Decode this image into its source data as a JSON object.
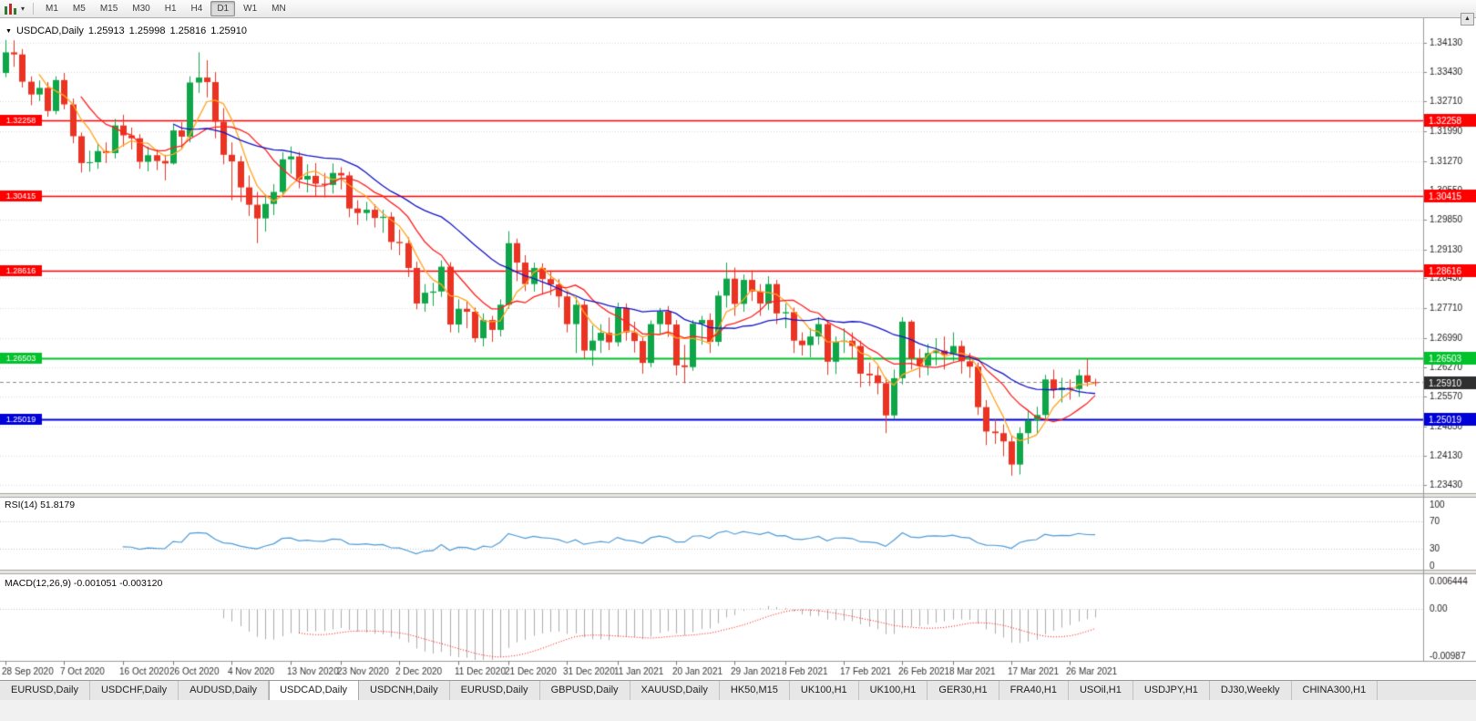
{
  "toolbar": {
    "dropdown_glyph": "▾",
    "scroll_glyph": "▲",
    "timeframes": [
      {
        "label": "M1",
        "active": false
      },
      {
        "label": "M5",
        "active": false
      },
      {
        "label": "M15",
        "active": false
      },
      {
        "label": "M30",
        "active": false
      },
      {
        "label": "H1",
        "active": false
      },
      {
        "label": "H4",
        "active": false
      },
      {
        "label": "D1",
        "active": true
      },
      {
        "label": "W1",
        "active": false
      },
      {
        "label": "MN",
        "active": false
      }
    ]
  },
  "chart_header": {
    "menu_glyph": "▼",
    "symbol": "USDCAD,Daily",
    "open": "1.25913",
    "high": "1.25998",
    "low": "1.25816",
    "close": "1.25910"
  },
  "chart_data": {
    "type": "candlestick",
    "symbol": "USDCAD",
    "timeframe": "Daily",
    "price_range": {
      "top": 1.3455,
      "bottom": 1.2325
    },
    "up_color": "#0FA64A",
    "down_color": "#EA3323",
    "candles": [
      [
        1.334,
        1.342,
        1.333,
        1.339
      ],
      [
        1.339,
        1.3419,
        1.3355,
        1.3385
      ],
      [
        1.3385,
        1.3398,
        1.3305,
        1.3319
      ],
      [
        1.3319,
        1.3332,
        1.3262,
        1.3288
      ],
      [
        1.3288,
        1.3322,
        1.3272,
        1.3304
      ],
      [
        1.3304,
        1.3318,
        1.3234,
        1.3248
      ],
      [
        1.3248,
        1.3332,
        1.324,
        1.3323
      ],
      [
        1.3323,
        1.334,
        1.3252,
        1.3264
      ],
      [
        1.3264,
        1.3278,
        1.317,
        1.3187
      ],
      [
        1.3187,
        1.3196,
        1.3099,
        1.3122
      ],
      [
        1.3122,
        1.3152,
        1.3101,
        1.3124
      ],
      [
        1.3124,
        1.3169,
        1.3108,
        1.3151
      ],
      [
        1.3151,
        1.3172,
        1.3122,
        1.3146
      ],
      [
        1.3146,
        1.3229,
        1.3133,
        1.3213
      ],
      [
        1.3213,
        1.3239,
        1.3162,
        1.3189
      ],
      [
        1.3189,
        1.3208,
        1.3155,
        1.3182
      ],
      [
        1.3182,
        1.3192,
        1.3108,
        1.3125
      ],
      [
        1.3125,
        1.3162,
        1.3102,
        1.3141
      ],
      [
        1.3141,
        1.3155,
        1.3105,
        1.3127
      ],
      [
        1.3127,
        1.3142,
        1.308,
        1.3121
      ],
      [
        1.3121,
        1.3215,
        1.3118,
        1.3201
      ],
      [
        1.3201,
        1.3221,
        1.3157,
        1.3186
      ],
      [
        1.3186,
        1.3332,
        1.3172,
        1.3317
      ],
      [
        1.3317,
        1.339,
        1.3292,
        1.3329
      ],
      [
        1.3329,
        1.3371,
        1.3281,
        1.3318
      ],
      [
        1.3318,
        1.3342,
        1.3182,
        1.3222
      ],
      [
        1.3222,
        1.3255,
        1.3119,
        1.3142
      ],
      [
        1.3142,
        1.3172,
        1.3032,
        1.3126
      ],
      [
        1.3126,
        1.3139,
        1.3028,
        1.3063
      ],
      [
        1.3063,
        1.3092,
        1.2994,
        1.3021
      ],
      [
        1.3021,
        1.3052,
        1.2928,
        1.2988
      ],
      [
        1.2988,
        1.3046,
        1.2956,
        1.3023
      ],
      [
        1.3023,
        1.3071,
        1.2996,
        1.3052
      ],
      [
        1.3052,
        1.3148,
        1.3041,
        1.3131
      ],
      [
        1.3131,
        1.3162,
        1.3096,
        1.3138
      ],
      [
        1.3138,
        1.3149,
        1.3061,
        1.3082
      ],
      [
        1.3082,
        1.3119,
        1.3051,
        1.3091
      ],
      [
        1.3091,
        1.3122,
        1.3042,
        1.3072
      ],
      [
        1.3072,
        1.3098,
        1.3039,
        1.3069
      ],
      [
        1.3069,
        1.3121,
        1.3048,
        1.3098
      ],
      [
        1.3098,
        1.3112,
        1.3058,
        1.3092
      ],
      [
        1.3092,
        1.3101,
        1.2991,
        1.3012
      ],
      [
        1.3012,
        1.3032,
        1.2972,
        1.3001
      ],
      [
        1.3001,
        1.3028,
        1.2982,
        1.3009
      ],
      [
        1.3009,
        1.3022,
        1.2966,
        1.2989
      ],
      [
        1.2989,
        1.3009,
        1.2953,
        1.2992
      ],
      [
        1.2992,
        1.3003,
        1.2912,
        1.2931
      ],
      [
        1.2931,
        1.2961,
        1.2899,
        1.2928
      ],
      [
        1.2928,
        1.2942,
        1.2846,
        1.2868
      ],
      [
        1.2868,
        1.2883,
        1.2768,
        1.2782
      ],
      [
        1.2782,
        1.2829,
        1.2762,
        1.2808
      ],
      [
        1.2808,
        1.2832,
        1.2776,
        1.2811
      ],
      [
        1.2811,
        1.2886,
        1.2798,
        1.2871
      ],
      [
        1.2871,
        1.2882,
        1.2712,
        1.2731
      ],
      [
        1.2731,
        1.2792,
        1.2711,
        1.2769
      ],
      [
        1.2769,
        1.2788,
        1.2722,
        1.2762
      ],
      [
        1.2762,
        1.2772,
        1.2688,
        1.2698
      ],
      [
        1.2698,
        1.2758,
        1.2678,
        1.2742
      ],
      [
        1.2742,
        1.2752,
        1.2689,
        1.2718
      ],
      [
        1.2718,
        1.2792,
        1.2702,
        1.2779
      ],
      [
        1.2779,
        1.2957,
        1.2769,
        1.2928
      ],
      [
        1.2928,
        1.2939,
        1.2836,
        1.2881
      ],
      [
        1.2881,
        1.2899,
        1.2812,
        1.2829
      ],
      [
        1.2829,
        1.2881,
        1.2811,
        1.2868
      ],
      [
        1.2868,
        1.2879,
        1.2806,
        1.2841
      ],
      [
        1.2841,
        1.2862,
        1.2802,
        1.2828
      ],
      [
        1.2828,
        1.2841,
        1.2772,
        1.2799
      ],
      [
        1.2799,
        1.2812,
        1.2712,
        1.2732
      ],
      [
        1.2732,
        1.2798,
        1.2662,
        1.2779
      ],
      [
        1.2779,
        1.2789,
        1.2649,
        1.2668
      ],
      [
        1.2668,
        1.2729,
        1.2631,
        1.2692
      ],
      [
        1.2692,
        1.2732,
        1.2662,
        1.2711
      ],
      [
        1.2711,
        1.2748,
        1.2669,
        1.2688
      ],
      [
        1.2688,
        1.2784,
        1.2678,
        1.2771
      ],
      [
        1.2771,
        1.2782,
        1.2692,
        1.2712
      ],
      [
        1.2712,
        1.2738,
        1.2663,
        1.2691
      ],
      [
        1.2691,
        1.2702,
        1.2612,
        1.2638
      ],
      [
        1.2638,
        1.2741,
        1.2628,
        1.2732
      ],
      [
        1.2732,
        1.2771,
        1.2708,
        1.2762
      ],
      [
        1.2762,
        1.2776,
        1.2701,
        1.2731
      ],
      [
        1.2731,
        1.2742,
        1.2608,
        1.2632
      ],
      [
        1.2632,
        1.2682,
        1.2589,
        1.2628
      ],
      [
        1.2628,
        1.2742,
        1.2619,
        1.2733
      ],
      [
        1.2733,
        1.2752,
        1.2682,
        1.2742
      ],
      [
        1.2742,
        1.2758,
        1.2662,
        1.2689
      ],
      [
        1.2689,
        1.2812,
        1.2679,
        1.2801
      ],
      [
        1.2801,
        1.2881,
        1.2772,
        1.2842
      ],
      [
        1.2842,
        1.2869,
        1.2752,
        1.2781
      ],
      [
        1.2781,
        1.2852,
        1.2762,
        1.2839
      ],
      [
        1.2839,
        1.2862,
        1.2788,
        1.2811
      ],
      [
        1.2811,
        1.2829,
        1.2752,
        1.2782
      ],
      [
        1.2782,
        1.2848,
        1.2766,
        1.2829
      ],
      [
        1.2829,
        1.2839,
        1.2732,
        1.2758
      ],
      [
        1.2758,
        1.2782,
        1.2722,
        1.2761
      ],
      [
        1.2761,
        1.2772,
        1.2662,
        1.2692
      ],
      [
        1.2692,
        1.2712,
        1.2656,
        1.2681
      ],
      [
        1.2681,
        1.2722,
        1.2652,
        1.2702
      ],
      [
        1.2702,
        1.2749,
        1.2682,
        1.2732
      ],
      [
        1.2732,
        1.2742,
        1.2609,
        1.2641
      ],
      [
        1.2641,
        1.2702,
        1.2611,
        1.2689
      ],
      [
        1.2689,
        1.2722,
        1.2662,
        1.2692
      ],
      [
        1.2692,
        1.2712,
        1.2648,
        1.2679
      ],
      [
        1.2679,
        1.2692,
        1.2579,
        1.2612
      ],
      [
        1.2612,
        1.2639,
        1.2582,
        1.2608
      ],
      [
        1.2608,
        1.2629,
        1.2562,
        1.2589
      ],
      [
        1.2589,
        1.2602,
        1.2468,
        1.2511
      ],
      [
        1.2511,
        1.2622,
        1.2502,
        1.2601
      ],
      [
        1.2601,
        1.2749,
        1.2586,
        1.2738
      ],
      [
        1.2738,
        1.2742,
        1.2622,
        1.2649
      ],
      [
        1.2649,
        1.2672,
        1.2602,
        1.2631
      ],
      [
        1.2631,
        1.2684,
        1.2608,
        1.2662
      ],
      [
        1.2662,
        1.2698,
        1.2632,
        1.2668
      ],
      [
        1.2668,
        1.2702,
        1.2622,
        1.2658
      ],
      [
        1.2658,
        1.2712,
        1.2642,
        1.2679
      ],
      [
        1.2679,
        1.2692,
        1.2612,
        1.2642
      ],
      [
        1.2642,
        1.2662,
        1.2602,
        1.2629
      ],
      [
        1.2629,
        1.2639,
        1.2512,
        1.2531
      ],
      [
        1.2531,
        1.2548,
        1.2439,
        1.2472
      ],
      [
        1.2472,
        1.2502,
        1.2442,
        1.2468
      ],
      [
        1.2468,
        1.2489,
        1.2412,
        1.2448
      ],
      [
        1.2448,
        1.2462,
        1.2365,
        1.2392
      ],
      [
        1.2392,
        1.2482,
        1.2368,
        1.2468
      ],
      [
        1.2468,
        1.2522,
        1.2442,
        1.2499
      ],
      [
        1.2499,
        1.2532,
        1.2466,
        1.2512
      ],
      [
        1.2512,
        1.2609,
        1.2502,
        1.2598
      ],
      [
        1.2598,
        1.2622,
        1.2552,
        1.2572
      ],
      [
        1.2572,
        1.2602,
        1.2542,
        1.2578
      ],
      [
        1.2578,
        1.2598,
        1.2549,
        1.2575
      ],
      [
        1.2575,
        1.2622,
        1.2556,
        1.2608
      ],
      [
        1.2608,
        1.2648,
        1.2581,
        1.2592
      ],
      [
        1.25913,
        1.25998,
        1.25816,
        1.2591
      ]
    ],
    "x_ticks": [
      [
        0,
        "28 Sep 2020"
      ],
      [
        7,
        "7 Oct 2020"
      ],
      [
        14,
        "16 Oct 2020"
      ],
      [
        20,
        "26 Oct 2020"
      ],
      [
        27,
        "4 Nov 2020"
      ],
      [
        34,
        "13 Nov 2020"
      ],
      [
        40,
        "23 Nov 2020"
      ],
      [
        47,
        "2 Dec 2020"
      ],
      [
        54,
        "11 Dec 2020"
      ],
      [
        60,
        "21 Dec 2020"
      ],
      [
        67,
        "31 Dec 2020"
      ],
      [
        73,
        "11 Jan 2021"
      ],
      [
        80,
        "20 Jan 2021"
      ],
      [
        87,
        "29 Jan 2021"
      ],
      [
        93,
        "8 Feb 2021"
      ],
      [
        100,
        "17 Feb 2021"
      ],
      [
        107,
        "26 Feb 2021"
      ],
      [
        113,
        "8 Mar 2021"
      ],
      [
        120,
        "17 Mar 2021"
      ],
      [
        127,
        "26 Mar 2021"
      ]
    ],
    "y_axis_labels": [
      "1.34130",
      "1.33430",
      "1.32710",
      "1.31990",
      "1.31270",
      "1.30550",
      "1.29850",
      "1.29130",
      "1.28430",
      "1.27710",
      "1.26990",
      "1.26270",
      "1.25570",
      "1.24850",
      "1.24130",
      "1.23430"
    ],
    "hlines": [
      {
        "price": 1.32258,
        "label": "1.32258",
        "color": "#FF0000",
        "width": 1.5
      },
      {
        "price": 1.30415,
        "label": "1.30415",
        "color": "#FF0000",
        "width": 1.5
      },
      {
        "price": 1.28616,
        "label": "1.28616",
        "color": "#FF0000",
        "width": 1.5
      },
      {
        "price": 1.26503,
        "label": "1.26503",
        "color": "#00C22B",
        "width": 2
      },
      {
        "price": 1.25019,
        "label": "1.25019",
        "color": "#0000D8",
        "width": 2
      }
    ],
    "current_price": {
      "value": 1.2591,
      "label": "1.25910",
      "box_color": "#2F2F2F",
      "line_color": "#8A8A8A"
    },
    "moving_averages": [
      {
        "period": 5,
        "color": "#FFA520"
      },
      {
        "period": 10,
        "color": "#FF2020"
      },
      {
        "period": 21,
        "color": "#1414C8"
      }
    ],
    "indicators": {
      "rsi": {
        "label": "RSI(14) 51.8179",
        "period": 14,
        "value": "51.8179",
        "color": "#4E9BD7",
        "levels": [
          {
            "v": 100,
            "label": "100"
          },
          {
            "v": 70,
            "label": "70"
          },
          {
            "v": 30,
            "label": "30"
          },
          {
            "v": 0,
            "label": "0"
          }
        ]
      },
      "macd": {
        "label": "MACD(12,26,9) -0.001051 -0.003120",
        "fast": 12,
        "slow": 26,
        "signal_period": 9,
        "main_value": "-0.001051",
        "signal_value": "-0.003120",
        "axis": [
          "0.006444",
          "0.00",
          "-0.00987"
        ],
        "histogram_color": "#ADADAD",
        "signal_color": "#FF0000"
      }
    }
  },
  "tabs": [
    {
      "label": "EURUSD,Daily",
      "active": false
    },
    {
      "label": "USDCHF,Daily",
      "active": false
    },
    {
      "label": "AUDUSD,Daily",
      "active": false
    },
    {
      "label": "USDCAD,Daily",
      "active": true
    },
    {
      "label": "USDCNH,Daily",
      "active": false
    },
    {
      "label": "EURUSD,Daily",
      "active": false
    },
    {
      "label": "GBPUSD,Daily",
      "active": false
    },
    {
      "label": "XAUUSD,Daily",
      "active": false
    },
    {
      "label": "HK50,M15",
      "active": false
    },
    {
      "label": "UK100,H1",
      "active": false
    },
    {
      "label": "UK100,H1",
      "active": false
    },
    {
      "label": "GER30,H1",
      "active": false
    },
    {
      "label": "FRA40,H1",
      "active": false
    },
    {
      "label": "USOil,H1",
      "active": false
    },
    {
      "label": "USDJPY,H1",
      "active": false
    },
    {
      "label": "DJ30,Weekly",
      "active": false
    },
    {
      "label": "CHINA300,H1",
      "active": false
    }
  ]
}
